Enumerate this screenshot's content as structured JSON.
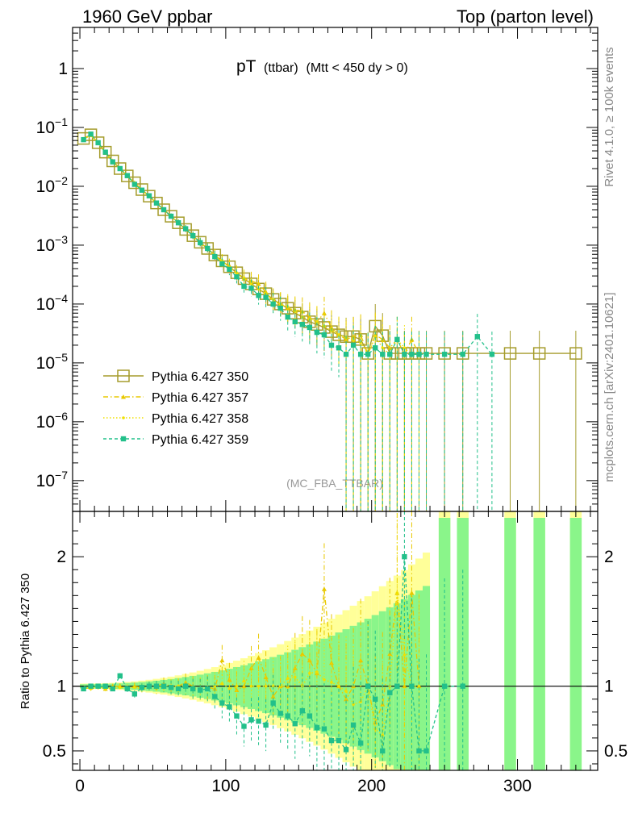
{
  "header": {
    "left": "1960 GeV ppbar",
    "right": "Top (parton level)"
  },
  "side_labels": {
    "rivet": "Rivet 4.1.0, ≥ 100k events",
    "mcplots": "mcplots.cern.ch [arXiv:2401.10621]"
  },
  "chart_data": {
    "type": "line",
    "title": "pT",
    "title_sub": "(ttbar)",
    "title_cut": "(Mtt < 450 dy > 0)",
    "analysis": "(MC_FBA_TTBAR)",
    "yscale": "log",
    "xlim": [
      -5,
      355
    ],
    "ylim": [
      3e-08,
      5
    ],
    "ytick_labels": [
      "10^-7",
      "10^-6",
      "10^-5",
      "10^-4",
      "10^-3",
      "10^-2",
      "10^-1",
      "1"
    ],
    "xtick_labels": [
      "0",
      "100",
      "200",
      "300"
    ],
    "ratio": {
      "ylabel": "Ratio to Pythia 6.427 350",
      "ylim": [
        0.35,
        2.35
      ],
      "ytick_labels": [
        "0.5",
        "1",
        "2"
      ]
    },
    "colors": {
      "s350": "#a59c2c",
      "s357": "#e8c800",
      "s358": "#f0e000",
      "s359": "#22c08a",
      "band350": "#ffff99",
      "band359": "#8af58a"
    },
    "series": [
      {
        "name": "Pythia 6.427 350",
        "x": [
          2.5,
          7.5,
          12.5,
          17.5,
          22.5,
          27.5,
          32.5,
          37.5,
          42.5,
          47.5,
          52.5,
          57.5,
          62.5,
          67.5,
          72.5,
          77.5,
          82.5,
          87.5,
          92.5,
          97.5,
          102.5,
          107.5,
          112.5,
          117.5,
          122.5,
          127.5,
          132.5,
          137.5,
          142.5,
          147.5,
          152.5,
          157.5,
          162.5,
          167.5,
          172.5,
          177.5,
          182.5,
          187.5,
          192.5,
          197.5,
          202.5,
          207.5,
          212.5,
          217.5,
          222.5,
          227.5,
          232.5,
          237.5,
          250,
          262.5,
          295,
          315,
          340
        ],
        "y": [
          0.065,
          0.075,
          0.055,
          0.038,
          0.027,
          0.02,
          0.015,
          0.0115,
          0.0088,
          0.0068,
          0.0052,
          0.004,
          0.0031,
          0.0024,
          0.00185,
          0.00145,
          0.00112,
          0.00088,
          0.00068,
          0.00054,
          0.00043,
          0.00034,
          0.00027,
          0.00022,
          0.00018,
          0.00015,
          0.00012,
          0.0001,
          8.5e-05,
          7e-05,
          6e-05,
          5e-05,
          4.5e-05,
          4e-05,
          3.4e-05,
          3e-05,
          2.8e-05,
          2.8e-05,
          2.5e-05,
          1.45e-05,
          4.2e-05,
          2.9e-05,
          1.45e-05,
          1.45e-05,
          1.45e-05,
          1.45e-05,
          1.45e-05,
          1.45e-05,
          1.45e-05,
          1.45e-05,
          1.45e-05,
          1.45e-05,
          1.45e-05
        ]
      },
      {
        "name": "Pythia 6.427 357",
        "x": [
          2.5,
          7.5,
          12.5,
          17.5,
          22.5,
          27.5,
          32.5,
          37.5,
          42.5,
          47.5,
          52.5,
          57.5,
          62.5,
          67.5,
          72.5,
          77.5,
          82.5,
          87.5,
          92.5,
          97.5,
          102.5,
          107.5,
          112.5,
          117.5,
          122.5,
          127.5,
          132.5,
          137.5,
          142.5,
          147.5,
          152.5,
          157.5,
          162.5,
          167.5,
          172.5,
          177.5,
          182.5,
          187.5,
          192.5,
          197.5,
          202.5,
          207.5,
          212.5,
          217.5,
          222.5,
          227.5,
          232.5
        ],
        "y": [
          0.063,
          0.074,
          0.055,
          0.037,
          0.027,
          0.02,
          0.0148,
          0.0115,
          0.0087,
          0.0068,
          0.0052,
          0.0041,
          0.0031,
          0.0024,
          0.0019,
          0.00145,
          0.0011,
          0.00087,
          0.00067,
          0.00052,
          0.00045,
          0.00033,
          0.00027,
          0.00025,
          0.00022,
          0.00016,
          0.00011,
          0.0001,
          8.5e-05,
          8e-05,
          7.5e-05,
          6e-05,
          5e-05,
          7e-05,
          4e-05,
          3e-05,
          2.5e-05,
          2.8e-05,
          3e-05,
          1.4e-05,
          3e-05,
          2.5e-05,
          1.8e-05,
          2.5e-05,
          1.4e-05,
          2.5e-05,
          1.4e-05
        ]
      },
      {
        "name": "Pythia 6.427 358",
        "x": [
          2.5,
          7.5,
          12.5,
          17.5,
          22.5,
          27.5,
          32.5,
          37.5,
          42.5,
          47.5,
          52.5,
          57.5,
          62.5,
          67.5,
          72.5,
          77.5,
          82.5,
          87.5,
          92.5,
          97.5,
          102.5,
          107.5,
          112.5,
          117.5,
          122.5,
          127.5,
          132.5,
          137.5,
          142.5,
          147.5,
          152.5,
          157.5,
          162.5,
          167.5,
          172.5,
          177.5,
          182.5,
          187.5,
          192.5,
          197.5,
          202.5,
          207.5,
          212.5,
          217.5,
          222.5,
          227.5,
          232.5
        ],
        "y": [
          0.064,
          0.073,
          0.054,
          0.037,
          0.026,
          0.0198,
          0.0149,
          0.0114,
          0.0086,
          0.0067,
          0.0051,
          0.004,
          0.0031,
          0.0024,
          0.00185,
          0.00142,
          0.0011,
          0.00086,
          0.00068,
          0.00055,
          0.00042,
          0.00034,
          0.00028,
          0.00022,
          0.00018,
          0.00015,
          0.00012,
          0.0001,
          9e-05,
          7.5e-05,
          6e-05,
          5.5e-05,
          5e-05,
          4.2e-05,
          3.5e-05,
          3e-05,
          2.7e-05,
          2.4e-05,
          2.2e-05,
          1.4e-05,
          2.8e-05,
          1.8e-05,
          1.4e-05,
          2.5e-05,
          1.8e-05,
          1.4e-05,
          1.4e-05
        ]
      },
      {
        "name": "Pythia 6.427 359",
        "x": [
          2.5,
          7.5,
          12.5,
          17.5,
          22.5,
          27.5,
          32.5,
          37.5,
          42.5,
          47.5,
          52.5,
          57.5,
          62.5,
          67.5,
          72.5,
          77.5,
          82.5,
          87.5,
          92.5,
          97.5,
          102.5,
          107.5,
          112.5,
          117.5,
          122.5,
          127.5,
          132.5,
          137.5,
          142.5,
          147.5,
          152.5,
          157.5,
          162.5,
          167.5,
          172.5,
          177.5,
          182.5,
          187.5,
          192.5,
          197.5,
          202.5,
          207.5,
          212.5,
          217.5,
          222.5,
          227.5,
          232.5,
          237.5,
          250,
          262.5,
          272.5,
          282.5
        ],
        "y": [
          0.062,
          0.077,
          0.055,
          0.038,
          0.026,
          0.02,
          0.0152,
          0.0108,
          0.0086,
          0.0069,
          0.0052,
          0.004,
          0.0031,
          0.0024,
          0.0019,
          0.00145,
          0.0011,
          0.00088,
          0.00064,
          0.00048,
          0.00039,
          0.00029,
          0.0002,
          0.000185,
          0.00014,
          0.00013,
          0.0001,
          8.5e-05,
          6e-05,
          5e-05,
          4.5e-05,
          4e-05,
          3.3e-05,
          3e-05,
          2e-05,
          1.8e-05,
          1.4e-05,
          2e-05,
          1.4e-05,
          1.4e-05,
          1.8e-05,
          1.4e-05,
          1.4e-05,
          2.5e-05,
          1.4e-05,
          1.4e-05,
          1.4e-05,
          1.4e-05,
          1.4e-05,
          1.4e-05,
          2.8e-05,
          1.4e-05
        ]
      }
    ],
    "ratio_series": [
      {
        "name": "Pythia 6.427 357",
        "x": [
          2.5,
          7.5,
          12.5,
          17.5,
          22.5,
          27.5,
          32.5,
          37.5,
          42.5,
          47.5,
          52.5,
          57.5,
          62.5,
          67.5,
          72.5,
          77.5,
          82.5,
          87.5,
          92.5,
          97.5,
          102.5,
          107.5,
          112.5,
          117.5,
          122.5,
          127.5,
          132.5,
          137.5,
          142.5,
          147.5,
          152.5,
          157.5,
          162.5,
          167.5,
          172.5,
          177.5,
          182.5,
          187.5,
          192.5,
          197.5,
          202.5,
          207.5,
          212.5,
          217.5,
          222.5,
          227.5,
          232.5
        ],
        "y": [
          0.98,
          0.99,
          1.0,
          0.98,
          1.0,
          1.0,
          0.98,
          1.0,
          0.99,
          1.0,
          1.0,
          1.02,
          1.0,
          1.0,
          1.03,
          1.0,
          0.98,
          0.99,
          0.98,
          1.2,
          1.05,
          0.97,
          1.0,
          1.14,
          1.22,
          1.07,
          0.92,
          1.0,
          1.0,
          1.14,
          1.25,
          1.2,
          1.1,
          1.75,
          1.18,
          1.0,
          0.9,
          1.0,
          1.2,
          1.0,
          0.72,
          0.86,
          1.25,
          1.72,
          1.0,
          1.72,
          1.0
        ]
      },
      {
        "name": "Pythia 6.427 358",
        "x": [
          2.5,
          7.5,
          12.5,
          17.5,
          22.5,
          27.5,
          32.5,
          37.5,
          42.5,
          47.5,
          52.5,
          57.5,
          62.5,
          67.5,
          72.5,
          77.5,
          82.5,
          87.5,
          92.5,
          97.5,
          102.5,
          107.5,
          112.5,
          117.5,
          122.5,
          127.5,
          132.5,
          137.5,
          142.5,
          147.5,
          152.5,
          157.5,
          162.5,
          167.5,
          172.5,
          177.5,
          182.5,
          187.5,
          192.5,
          197.5,
          202.5,
          207.5,
          212.5,
          217.5,
          222.5,
          227.5,
          232.5
        ],
        "y": [
          0.99,
          0.98,
          0.99,
          0.98,
          0.98,
          0.99,
          0.99,
          0.99,
          0.98,
          0.99,
          0.98,
          1.0,
          1.0,
          1.0,
          1.0,
          0.98,
          0.98,
          0.98,
          1.0,
          1.02,
          0.98,
          1.0,
          1.04,
          1.0,
          1.0,
          1.0,
          1.0,
          1.0,
          1.06,
          1.07,
          1.0,
          1.1,
          1.11,
          1.05,
          1.03,
          1.0,
          0.96,
          0.86,
          0.88,
          1.0,
          0.67,
          0.62,
          1.0,
          1.72,
          1.24,
          1.0,
          1.0
        ]
      },
      {
        "name": "Pythia 6.427 359",
        "x": [
          2.5,
          7.5,
          12.5,
          17.5,
          22.5,
          27.5,
          32.5,
          37.5,
          42.5,
          47.5,
          52.5,
          57.5,
          62.5,
          67.5,
          72.5,
          77.5,
          82.5,
          87.5,
          92.5,
          97.5,
          102.5,
          107.5,
          112.5,
          117.5,
          122.5,
          127.5,
          132.5,
          137.5,
          142.5,
          147.5,
          152.5,
          157.5,
          162.5,
          167.5,
          172.5,
          177.5,
          182.5,
          187.5,
          192.5,
          197.5,
          202.5,
          207.5,
          212.5,
          217.5,
          222.5,
          227.5,
          232.5,
          237.5,
          250,
          262.5
        ],
        "y": [
          0.98,
          1.0,
          1.0,
          1.0,
          0.98,
          1.08,
          0.98,
          0.94,
          0.99,
          1.0,
          1.0,
          1.0,
          0.99,
          0.98,
          1.0,
          0.98,
          0.97,
          0.98,
          0.92,
          0.87,
          0.84,
          0.77,
          0.69,
          0.74,
          0.73,
          0.7,
          0.87,
          0.79,
          0.77,
          0.71,
          0.81,
          0.77,
          0.68,
          0.67,
          0.58,
          0.58,
          0.51,
          0.7,
          0.56,
          1.0,
          0.9,
          0.5,
          0.95,
          1.0,
          2.0,
          1.0,
          0.5,
          0.5,
          1.0,
          1.0
        ]
      }
    ],
    "legend": [
      {
        "label": "Pythia 6.427 350",
        "style": "open-square-solid"
      },
      {
        "label": "Pythia 6.427 357",
        "style": "triangle-dashdot"
      },
      {
        "label": "Pythia 6.427 358",
        "style": "dot-dotted"
      },
      {
        "label": "Pythia 6.427 359",
        "style": "filled-square-dashed"
      }
    ]
  }
}
